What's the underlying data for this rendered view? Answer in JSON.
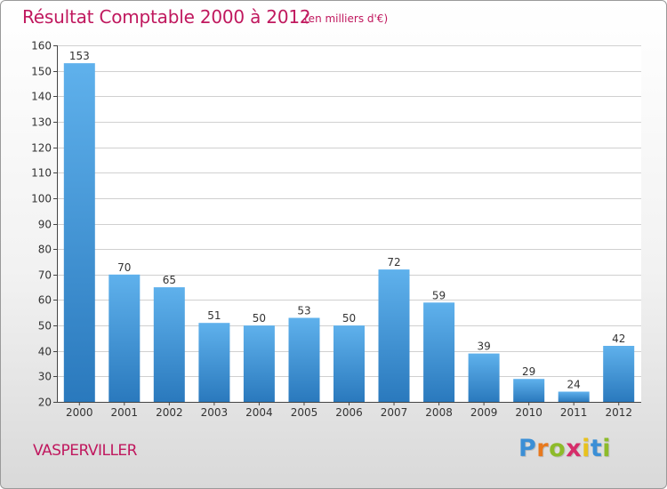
{
  "header": {
    "title": "Résultat Comptable 2000 à 2012",
    "subtitle": "(en milliers d'€)"
  },
  "footer": {
    "location_label": "VASPERVILLER",
    "brand_letters": [
      "P",
      "r",
      "o",
      "x",
      "i",
      "t",
      "i"
    ],
    "brand_colors": [
      "#3b8fd6",
      "#e8791d",
      "#8dbb2a",
      "#d62d6a",
      "#e8c21d",
      "#3b8fd6",
      "#8dbb2a"
    ]
  },
  "colors": {
    "bar_top": "#5fb1ec",
    "bar_bottom": "#2a79bd",
    "accent": "#c0185e",
    "grid": "#d0d0d0"
  },
  "chart_data": {
    "type": "bar",
    "title": "Résultat Comptable 2000 à 2012",
    "subtitle": "(en milliers d'€)",
    "categories": [
      "2000",
      "2001",
      "2002",
      "2003",
      "2004",
      "2005",
      "2006",
      "2007",
      "2008",
      "2009",
      "2010",
      "2011",
      "2012"
    ],
    "values": [
      153,
      70,
      65,
      51,
      50,
      53,
      50,
      72,
      59,
      39,
      29,
      24,
      42
    ],
    "ylim": [
      20,
      160
    ],
    "yticks": [
      20,
      30,
      40,
      50,
      60,
      70,
      80,
      90,
      100,
      110,
      120,
      130,
      140,
      150,
      160
    ],
    "grid": true,
    "data_labels": true
  }
}
